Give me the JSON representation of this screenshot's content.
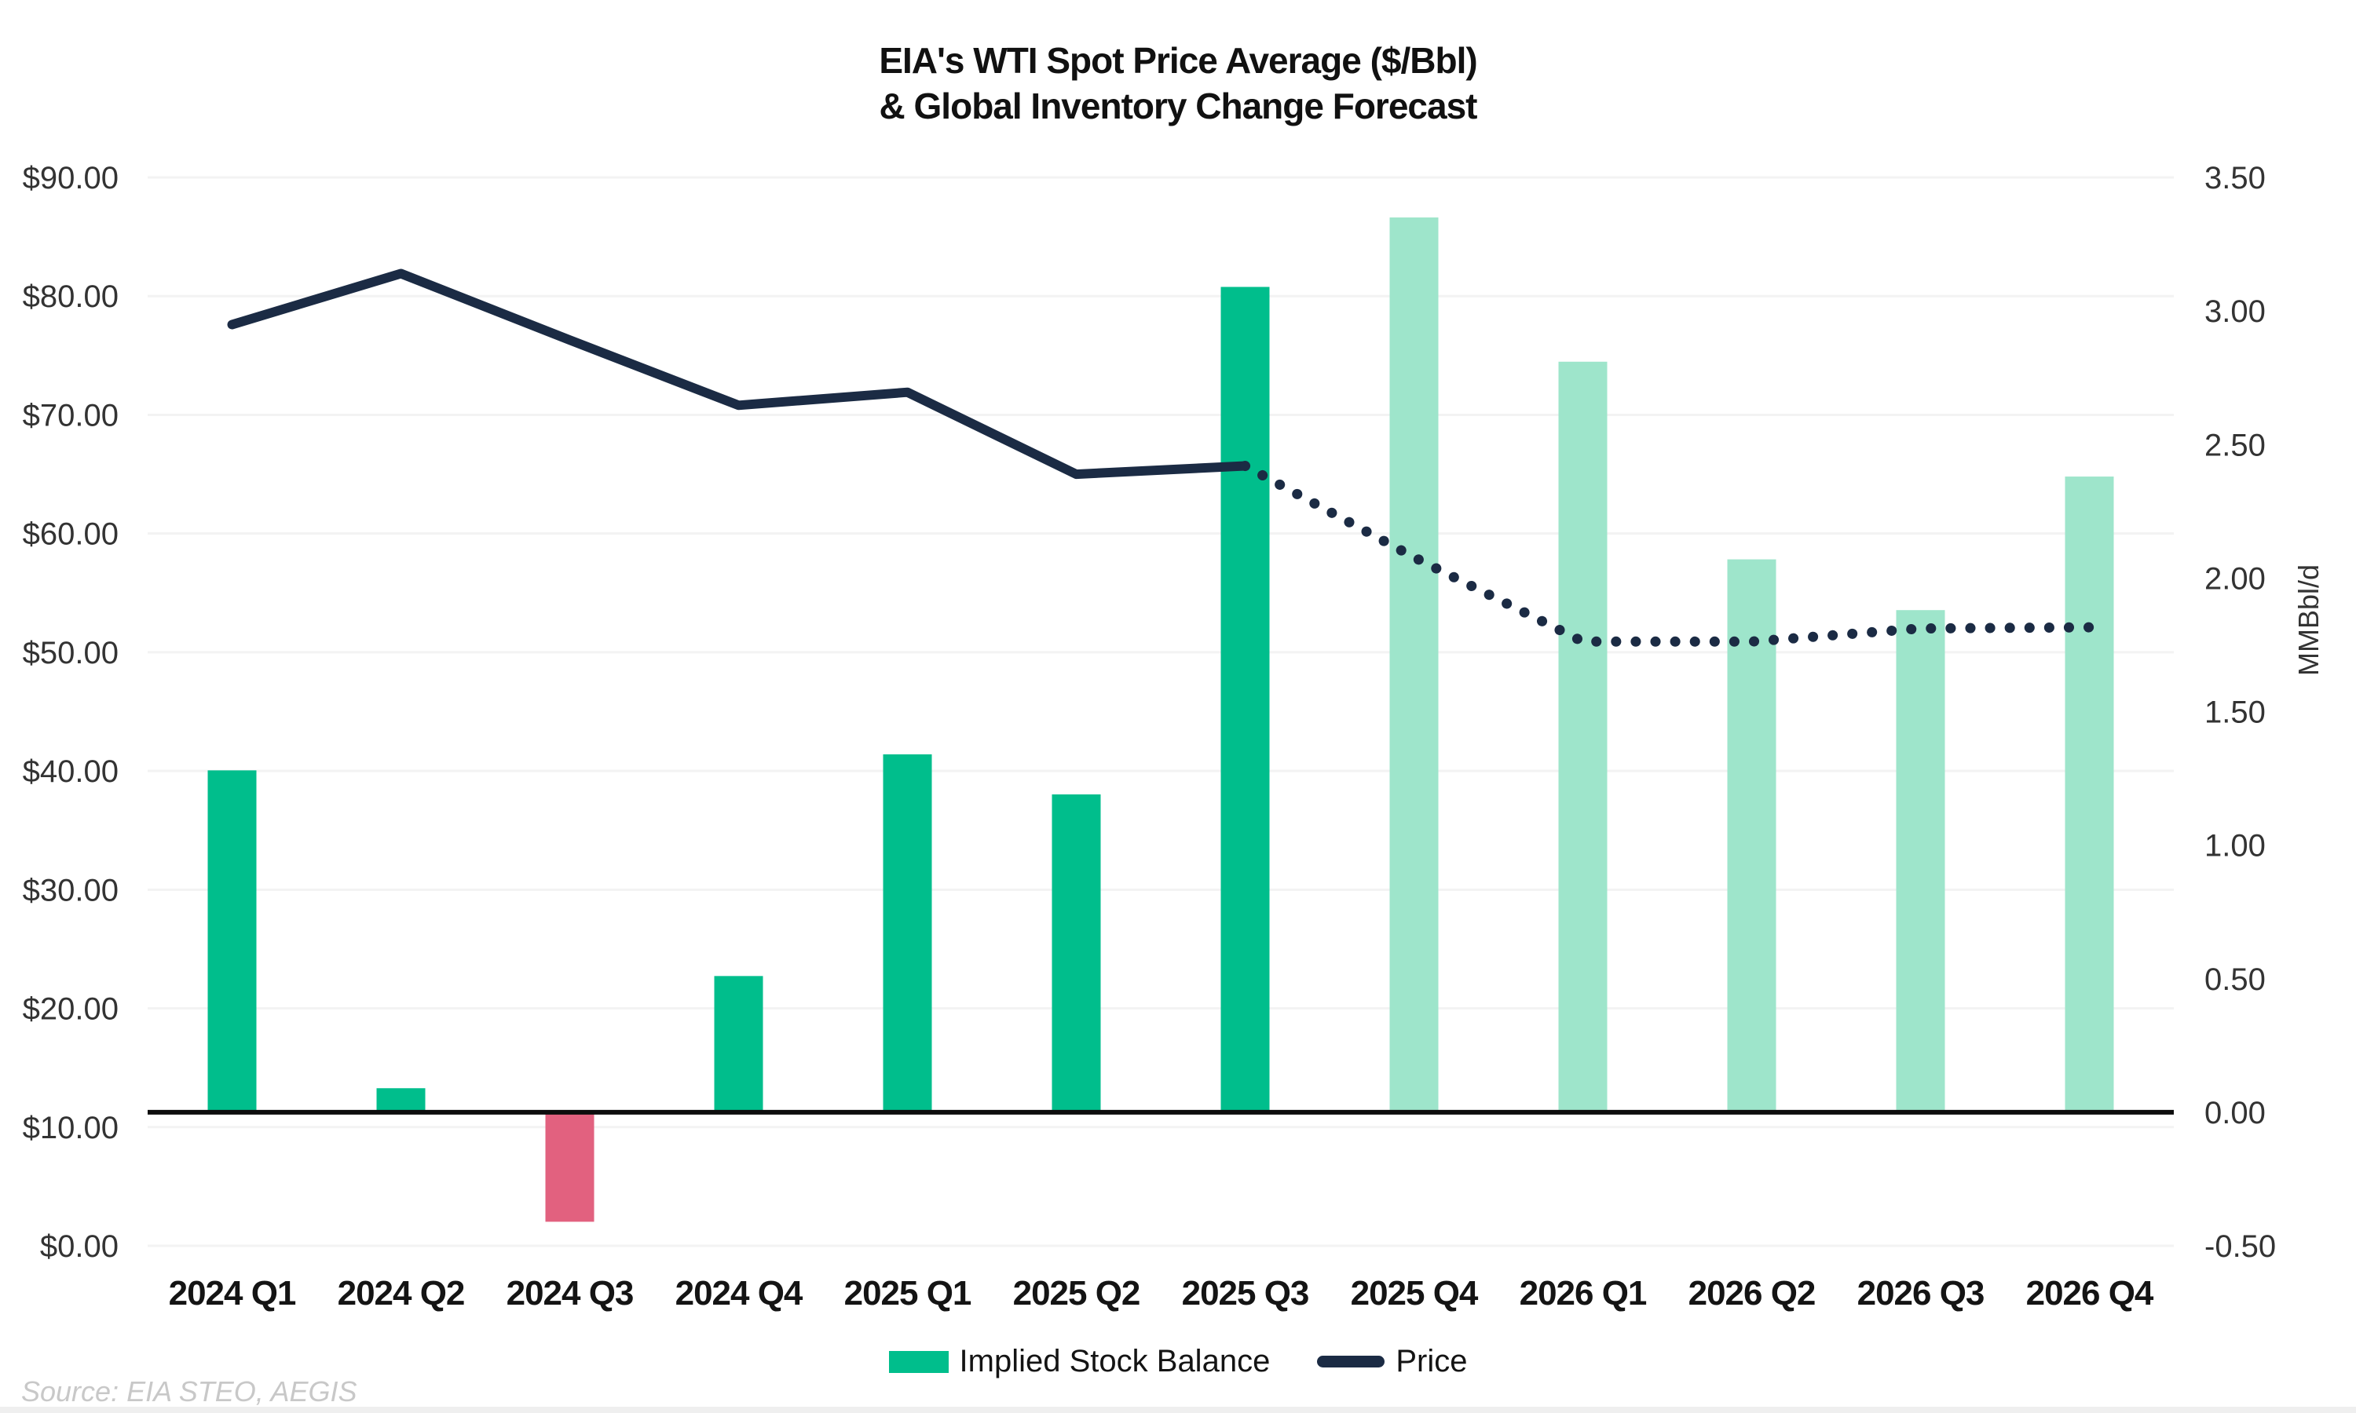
{
  "chart_data": {
    "type": "combo-bar-line",
    "title_line1": "EIA's WTI Spot Price Average ($/Bbl)",
    "title_line2": "& Global Inventory Change Forecast",
    "source": "Source: EIA STEO, AEGIS",
    "categories": [
      "2024 Q1",
      "2024 Q2",
      "2024 Q3",
      "2024 Q4",
      "2025 Q1",
      "2025 Q2",
      "2025 Q3",
      "2025 Q4",
      "2026 Q1",
      "2026 Q2",
      "2026 Q3",
      "2026 Q4"
    ],
    "left_axis": {
      "ticks": [
        "$90.00",
        "$80.00",
        "$70.00",
        "$60.00",
        "$50.00",
        "$40.00",
        "$30.00",
        "$20.00",
        "$10.00",
        "$0.00"
      ],
      "tick_values": [
        90,
        80,
        70,
        60,
        50,
        40,
        30,
        20,
        10,
        0
      ],
      "min": 0,
      "max": 90
    },
    "right_axis": {
      "label": "MMBbl/d",
      "ticks": [
        "3.50",
        "3.00",
        "2.50",
        "2.00",
        "1.50",
        "1.00",
        "0.50",
        "0.00",
        "-0.50"
      ],
      "tick_values": [
        3.5,
        3.0,
        2.5,
        2.0,
        1.5,
        1.0,
        0.5,
        0.0,
        -0.5
      ],
      "min": -0.5,
      "max": 3.5
    },
    "series": [
      {
        "name": "Implied Stock Balance",
        "type": "bar",
        "axis": "right",
        "values": [
          1.28,
          0.09,
          -0.41,
          0.51,
          1.34,
          1.19,
          3.09,
          3.35,
          2.81,
          2.07,
          1.88,
          2.38
        ],
        "forecast_start_index": 7,
        "colors": {
          "historical": "#00BE8C",
          "forecast": "#9EE5CB",
          "negative": "#E2617F"
        }
      },
      {
        "name": "Price",
        "type": "line",
        "axis": "left",
        "values": [
          77.6,
          81.9,
          76.3,
          70.8,
          71.9,
          65.0,
          65.7,
          58.0,
          50.9,
          50.9,
          52.0,
          52.1
        ],
        "forecast_start_index": 6,
        "color": "#1B2B44",
        "style_historical": "solid",
        "style_forecast": "dotted"
      }
    ],
    "legend": {
      "items": [
        {
          "label": "Implied Stock Balance",
          "swatch": "bar"
        },
        {
          "label": "Price",
          "swatch": "line"
        }
      ]
    },
    "colors": {
      "grid": "#f3f3f3",
      "zero_line": "#0d0d0d",
      "axis_text": "#333333",
      "category_text": "#141414",
      "title_text": "#111111",
      "source_text": "#c8c8c8",
      "footer_strip": "#efefef"
    }
  }
}
